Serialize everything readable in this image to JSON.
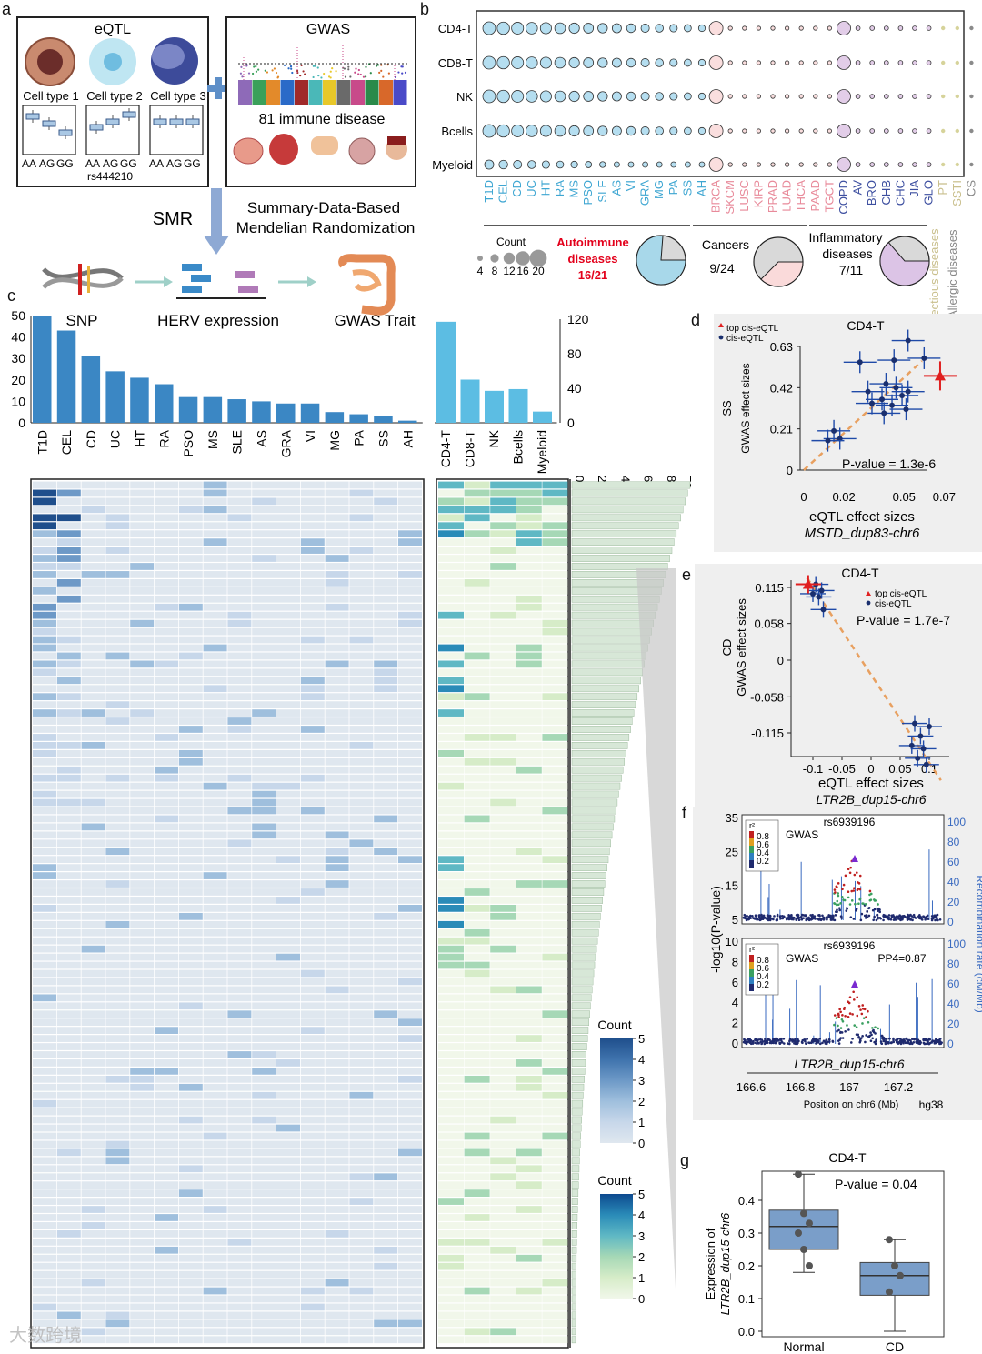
{
  "panel_letters": {
    "a": "a",
    "b": "b",
    "c": "c",
    "d": "d",
    "e": "e",
    "f": "f",
    "g": "g"
  },
  "panel_a": {
    "eqtl_title": "eQTL",
    "gwas_title": "GWAS",
    "cell_types": [
      "Cell type 1",
      "Cell type 2",
      "Cell type 3"
    ],
    "genotypes": [
      "AA",
      "AG",
      "GG"
    ],
    "snp_id": "rs444210",
    "gwas_caption": "81 immune disease",
    "smr_label": "SMR",
    "smr_desc_1": "Summary-Data-Based",
    "smr_desc_2": "Mendelian Randomization",
    "flow_labels": [
      "SNP",
      "HERV expression",
      "GWAS Trait"
    ]
  },
  "panel_b": {
    "rows": [
      "CD4-T",
      "CD8-T",
      "NK",
      "Bcells",
      "Myeloid"
    ],
    "autoimmune": [
      "T1D",
      "CEL",
      "CD",
      "UC",
      "HT",
      "RA",
      "MS",
      "PSO",
      "SLE",
      "AS",
      "VI",
      "GRA",
      "MG",
      "PA",
      "SS",
      "AH"
    ],
    "cancers": [
      "BRCA",
      "SKCM",
      "LUSC",
      "KIRP",
      "PRAD",
      "LUAD",
      "THCA",
      "PAAD",
      "TGCT"
    ],
    "inflammatory": [
      "COPD",
      "AV",
      "BRO",
      "CHB",
      "CHC",
      "JIA",
      "GLO"
    ],
    "infectious": [
      "PT",
      "SSTI"
    ],
    "allergic": [
      "CS"
    ],
    "count_legend_title": "Count",
    "count_legend_values": [
      "4",
      "8",
      "12",
      "16",
      "20"
    ],
    "groups": [
      {
        "name_1": "Autoimmune",
        "name_2": "diseases",
        "ratio": "16/21",
        "fraction": 0.762,
        "color": "#a8d8ea"
      },
      {
        "name_1": "Cancers",
        "name_2": "",
        "ratio": "9/24",
        "fraction": 0.375,
        "color": "#fadada"
      },
      {
        "name_1": "Inflammatory",
        "name_2": "diseases",
        "ratio": "7/11",
        "fraction": 0.636,
        "color": "#dcc4e6"
      }
    ],
    "vertical_labels": [
      "Infectious diseases",
      "Allergic diseases"
    ],
    "colors": {
      "autoimmune": "#3ea6d2",
      "cancer": "#e88a9a",
      "inflammatory": "#3d4fa0",
      "infectious": "#c9bf8c",
      "allergic": "#888888",
      "autoimmune_title": "#e3001b"
    }
  },
  "chart_data": [
    {
      "type": "bar",
      "panel": "c-left",
      "categories": [
        "T1D",
        "CEL",
        "CD",
        "UC",
        "HT",
        "RA",
        "PSO",
        "MS",
        "SLE",
        "AS",
        "GRA",
        "VI",
        "MG",
        "PA",
        "SS",
        "AH"
      ],
      "values": [
        50,
        43,
        31,
        24,
        21,
        18,
        12,
        12,
        11,
        10,
        9,
        9,
        5,
        4,
        3,
        1
      ],
      "ylim": [
        0,
        50
      ],
      "yticks": [
        "0",
        "10",
        "20",
        "30",
        "40",
        "50"
      ]
    },
    {
      "type": "bar",
      "panel": "c-middle",
      "categories": [
        "CD4-T",
        "CD8-T",
        "NK",
        "Bcells",
        "Myeloid"
      ],
      "values": [
        117,
        50,
        37,
        39,
        13
      ],
      "ylim": [
        0,
        120
      ],
      "yticks": [
        "0",
        "40",
        "80",
        "120"
      ]
    },
    {
      "type": "scatter",
      "panel": "d",
      "title": "CD4-T",
      "xlabel": "eQTL effect sizes",
      "xlabel_sub": "MSTD_dup83-chr6",
      "ylabel_1": "SS",
      "ylabel_2": "GWAS effect sizes",
      "xticks": [
        "0",
        "0.02",
        "0.05",
        "0.07"
      ],
      "yticks": [
        "0",
        "0.21",
        "0.42",
        "0.63"
      ],
      "legend": [
        "top cis-eQTL",
        "cis-eQTL"
      ],
      "annotation": "P-value = 1.3e-6",
      "points": [
        [
          0.052,
          0.66
        ],
        [
          0.06,
          0.57
        ],
        [
          0.045,
          0.56
        ],
        [
          0.028,
          0.55
        ],
        [
          0.041,
          0.44
        ],
        [
          0.032,
          0.4
        ],
        [
          0.046,
          0.42
        ],
        [
          0.052,
          0.4
        ],
        [
          0.049,
          0.38
        ],
        [
          0.039,
          0.36
        ],
        [
          0.034,
          0.34
        ],
        [
          0.044,
          0.33
        ],
        [
          0.051,
          0.31
        ],
        [
          0.04,
          0.29
        ],
        [
          0.015,
          0.2
        ],
        [
          0.018,
          0.16
        ],
        [
          0.012,
          0.15
        ]
      ],
      "top_point": [
        0.068,
        0.48
      ]
    },
    {
      "type": "scatter",
      "panel": "e",
      "title": "CD4-T",
      "xlabel": "eQTL effect sizes",
      "xlabel_sub": "LTR2B_dup15-chr6",
      "ylabel_1": "CD",
      "ylabel_2": "GWAS effect sizes",
      "xticks": [
        "-0.1",
        "-0.05",
        "0",
        "0.05",
        "0.1"
      ],
      "yticks": [
        "-0.115",
        "-0.058",
        "0",
        "0.058",
        "0.115"
      ],
      "legend": [
        "top cis-eQTL",
        "cis-eQTL"
      ],
      "annotation": "P-value = 1.7e-7",
      "points": [
        [
          -0.095,
          0.12
        ],
        [
          -0.085,
          0.11
        ],
        [
          -0.1,
          0.105
        ],
        [
          -0.09,
          0.1
        ],
        [
          -0.082,
          0.08
        ],
        [
          0.075,
          -0.1
        ],
        [
          0.085,
          -0.12
        ],
        [
          0.1,
          -0.105
        ],
        [
          0.07,
          -0.135
        ],
        [
          0.09,
          -0.14
        ],
        [
          0.08,
          -0.155
        ],
        [
          0.095,
          -0.165
        ]
      ],
      "top_point": [
        -0.108,
        0.12
      ]
    },
    {
      "type": "box",
      "panel": "g",
      "title": "CD4-T",
      "categories": [
        "Normal",
        "CD"
      ],
      "ylabel_1": "Expression of",
      "ylabel_2": "LTR2B_dup15-chr6",
      "yticks": [
        "0.0",
        "0.1",
        "0.2",
        "0.3",
        "0.4"
      ],
      "annotation": "P-value = 0.04",
      "boxes": [
        {
          "min": 0.18,
          "q1": 0.25,
          "median": 0.32,
          "q3": 0.37,
          "max": 0.48,
          "points": [
            0.48,
            0.36,
            0.33,
            0.3,
            0.25,
            0.2
          ]
        },
        {
          "min": 0.0,
          "q1": 0.11,
          "median": 0.17,
          "q3": 0.21,
          "max": 0.28,
          "points": [
            0.28,
            0.2,
            0.17,
            0.12
          ]
        }
      ]
    }
  ],
  "panel_c": {
    "legend1_title": "Count",
    "legend1_ticks": [
      "5",
      "4",
      "3",
      "2",
      "1",
      "0"
    ],
    "legend2_title": "Count",
    "legend2_ticks": [
      "5",
      "4",
      "3",
      "2",
      "1",
      "0"
    ],
    "hbar_ticks": [
      "0",
      "2",
      "4",
      "6",
      "8",
      "10"
    ]
  },
  "panel_f": {
    "snp": "rs6939196",
    "top_label": "GWAS",
    "bottom_label": "GWAS",
    "pp4": "PP4=0.87",
    "r2_title": "r²",
    "r2_values": [
      "0.8",
      "0.6",
      "0.4",
      "0.2"
    ],
    "top_yticks": [
      "35",
      "25",
      "15",
      "5"
    ],
    "bottom_yticks": [
      "10",
      "8",
      "6",
      "4",
      "2",
      "0"
    ],
    "right_yticks_top": [
      "100",
      "80",
      "60",
      "40",
      "20",
      "0"
    ],
    "right_yticks_bottom": [
      "100",
      "80",
      "60",
      "40",
      "20",
      "0"
    ],
    "ylabel": "-log10(P-value)",
    "ylabel_right": "Recombination rate (cM/Mb)",
    "gene_label": "LTR2B_dup15-chr6",
    "xticks": [
      "166.6",
      "166.8",
      "167",
      "167.2"
    ],
    "xlabel": "Position on chr6 (Mb)",
    "build": "hg38"
  },
  "watermark": "大数跨境"
}
